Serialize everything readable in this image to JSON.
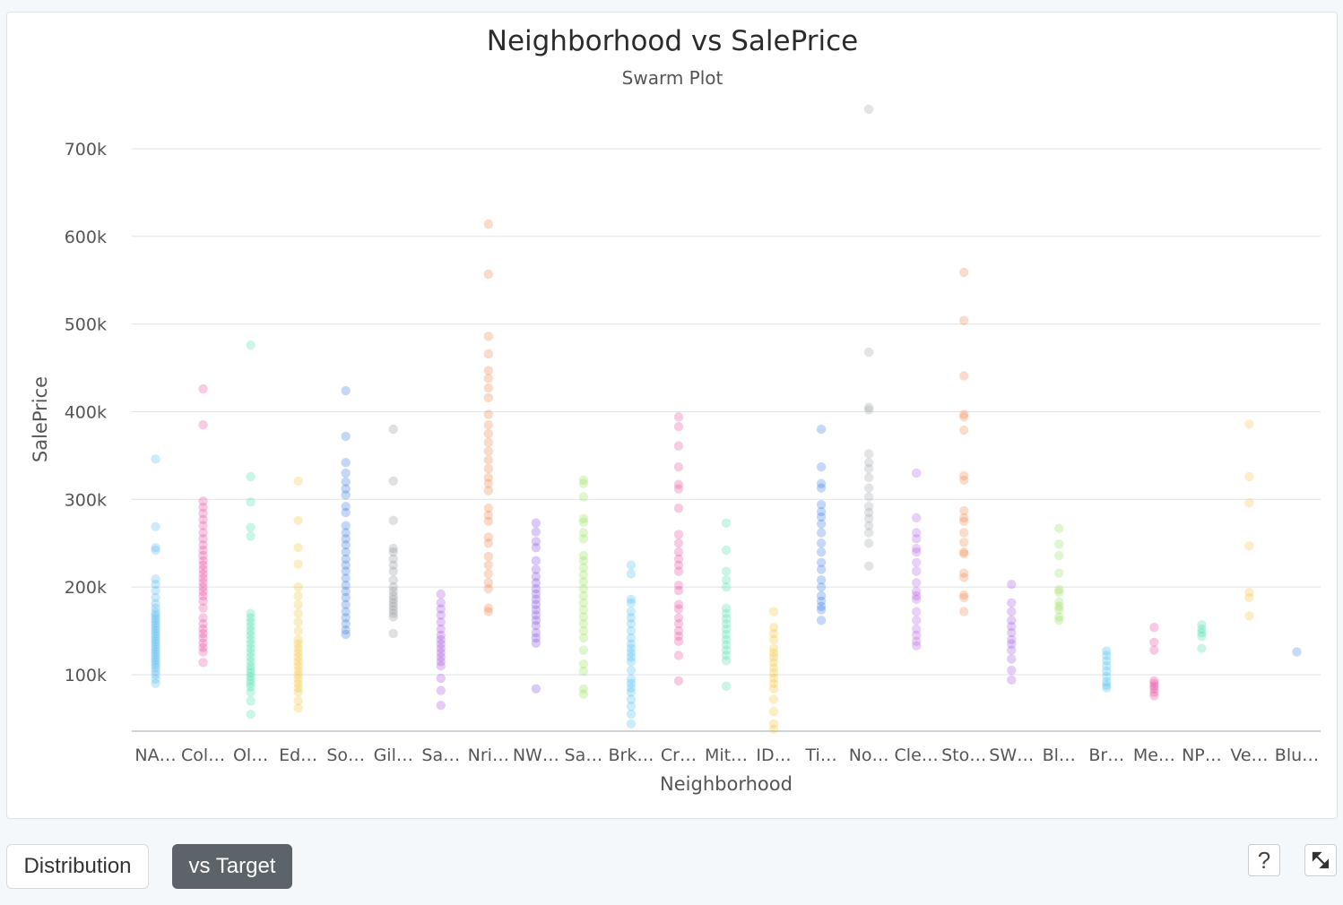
{
  "chart_data": {
    "type": "scatter",
    "title": "Neighborhood vs SalePrice",
    "subtitle": "Swarm Plot",
    "xlabel": "Neighborhood",
    "ylabel": "SalePrice",
    "ylim": [
      35000,
      735000
    ],
    "yticks": [
      {
        "value": 100000,
        "label": "100k"
      },
      {
        "value": 200000,
        "label": "200k"
      },
      {
        "value": 300000,
        "label": "300k"
      },
      {
        "value": 400000,
        "label": "400k"
      },
      {
        "value": 500000,
        "label": "500k"
      },
      {
        "value": 600000,
        "label": "600k"
      },
      {
        "value": 700000,
        "label": "700k"
      }
    ],
    "grid": true,
    "series": [
      {
        "category": "NA…",
        "color": "#4fb8f0",
        "values": [
          346000,
          269000,
          245000,
          242000,
          209000,
          203000,
          196000,
          188000,
          181000,
          176000,
          171000,
          168000,
          165000,
          162000,
          159000,
          156000,
          153000,
          150000,
          147000,
          144000,
          141000,
          138000,
          135000,
          132000,
          129000,
          126000,
          123000,
          120000,
          117000,
          114000,
          111000,
          108000,
          104000,
          100000,
          95000,
          90000
        ]
      },
      {
        "category": "Col…",
        "color": "#e6409a",
        "values": [
          426000,
          385000,
          298000,
          291000,
          284000,
          277000,
          270000,
          262000,
          255000,
          248000,
          242000,
          236000,
          230000,
          225000,
          220000,
          215000,
          210000,
          205000,
          200000,
          195000,
          190000,
          184000,
          176000,
          165000,
          158000,
          152000,
          147000,
          142000,
          136000,
          131000,
          126000,
          114000
        ]
      },
      {
        "category": "Ol…",
        "color": "#3ee0a8",
        "values": [
          476000,
          326000,
          297000,
          268000,
          258000,
          170000,
          165000,
          160000,
          155000,
          150000,
          145000,
          140000,
          135000,
          130000,
          125000,
          120000,
          115000,
          110000,
          106000,
          102000,
          98000,
          94000,
          90000,
          86000,
          80000,
          70000,
          55000
        ]
      },
      {
        "category": "Ed…",
        "color": "#f2c12e",
        "values": [
          321000,
          276000,
          245000,
          226000,
          200000,
          190000,
          180000,
          170000,
          160000,
          150000,
          140000,
          135000,
          130000,
          125000,
          120000,
          115000,
          110000,
          105000,
          100000,
          95000,
          90000,
          85000,
          80000,
          70000,
          62000
        ]
      },
      {
        "category": "So…",
        "color": "#2b6fe0",
        "values": [
          424000,
          372000,
          342000,
          330000,
          320000,
          312000,
          305000,
          292000,
          285000,
          270000,
          262000,
          255000,
          248000,
          240000,
          232000,
          225000,
          218000,
          210000,
          202000,
          195000,
          188000,
          180000,
          172000,
          165000,
          158000,
          151000,
          146000
        ]
      },
      {
        "category": "Gil…",
        "color": "#8c9095",
        "values": [
          380000,
          321000,
          276000,
          244000,
          240000,
          232000,
          225000,
          218000,
          208000,
          200000,
          195000,
          190000,
          186000,
          182000,
          178000,
          174000,
          170000,
          166000,
          147000
        ]
      },
      {
        "category": "Sa…",
        "color": "#a244e0",
        "values": [
          192000,
          182000,
          175000,
          168000,
          160000,
          152000,
          145000,
          140000,
          135000,
          130000,
          125000,
          120000,
          115000,
          110000,
          96000,
          82000,
          65000
        ]
      },
      {
        "category": "Nri…",
        "color": "#ee7a3a",
        "values": [
          614000,
          557000,
          486000,
          466000,
          447000,
          438000,
          427000,
          416000,
          397000,
          385000,
          375000,
          365000,
          355000,
          345000,
          335000,
          325000,
          318000,
          310000,
          290000,
          282000,
          275000,
          257000,
          250000,
          235000,
          225000,
          215000,
          205000,
          198000,
          176000,
          172000
        ]
      },
      {
        "category": "NW…",
        "color": "#7b3fe4",
        "values": [
          273000,
          263000,
          252000,
          245000,
          230000,
          220000,
          212000,
          205000,
          198000,
          192000,
          186000,
          180000,
          174000,
          168000,
          162000,
          156000,
          148000,
          142000,
          136000,
          84000
        ]
      },
      {
        "category": "Sa…",
        "color": "#8ee04c",
        "values": [
          322000,
          318000,
          303000,
          278000,
          274000,
          262000,
          255000,
          236000,
          230000,
          222000,
          214000,
          206000,
          198000,
          190000,
          182000,
          174000,
          166000,
          158000,
          150000,
          142000,
          128000,
          112000,
          104000,
          84000,
          78000
        ]
      },
      {
        "category": "Brk…",
        "color": "#3fbcf2",
        "values": [
          225000,
          215000,
          186000,
          182000,
          172000,
          165000,
          158000,
          150000,
          142000,
          135000,
          130000,
          125000,
          120000,
          115000,
          105000,
          95000,
          90000,
          85000,
          80000,
          72000,
          64000,
          55000,
          44000
        ]
      },
      {
        "category": "Cr…",
        "color": "#e6459c",
        "values": [
          394000,
          383000,
          361000,
          337000,
          317000,
          312000,
          290000,
          260000,
          250000,
          240000,
          232000,
          225000,
          218000,
          202000,
          196000,
          180000,
          175000,
          165000,
          158000,
          150000,
          144000,
          138000,
          122000,
          93000
        ]
      },
      {
        "category": "Mit…",
        "color": "#44e0a8",
        "values": [
          273000,
          242000,
          218000,
          208000,
          200000,
          176000,
          170000,
          164000,
          158000,
          152000,
          146000,
          140000,
          134000,
          128000,
          122000,
          116000,
          87000
        ]
      },
      {
        "category": "ID…",
        "color": "#f2c230",
        "values": [
          172000,
          154000,
          147000,
          140000,
          130000,
          125000,
          120000,
          114000,
          108000,
          102000,
          96000,
          90000,
          84000,
          72000,
          58000,
          44000,
          38000
        ]
      },
      {
        "category": "Ti…",
        "color": "#2f74e6",
        "values": [
          380000,
          337000,
          318000,
          313000,
          294000,
          286000,
          280000,
          272000,
          262000,
          250000,
          240000,
          228000,
          220000,
          208000,
          200000,
          190000,
          184000,
          178000,
          174000,
          162000
        ]
      },
      {
        "category": "No…",
        "color": "#9a9ea3",
        "values": [
          745000,
          468000,
          405000,
          402000,
          352000,
          342000,
          335000,
          325000,
          313000,
          303000,
          292000,
          285000,
          278000,
          270000,
          262000,
          250000,
          224000
        ]
      },
      {
        "category": "Cle…",
        "color": "#b055e6",
        "values": [
          330000,
          279000,
          262000,
          255000,
          244000,
          240000,
          228000,
          218000,
          205000,
          195000,
          190000,
          186000,
          172000,
          162000,
          152000,
          145000,
          138000,
          133000
        ]
      },
      {
        "category": "Sto…",
        "color": "#f0803f",
        "values": [
          559000,
          504000,
          441000,
          397000,
          394000,
          379000,
          327000,
          322000,
          287000,
          279000,
          275000,
          262000,
          251000,
          240000,
          238000,
          216000,
          211000,
          191000,
          188000,
          172000
        ]
      },
      {
        "category": "SW…",
        "color": "#9a50e0",
        "values": [
          203000,
          182000,
          172000,
          162000,
          155000,
          148000,
          140000,
          135000,
          128000,
          118000,
          105000,
          94000
        ]
      },
      {
        "category": "Bl…",
        "color": "#8ede55",
        "values": [
          267000,
          249000,
          236000,
          216000,
          197000,
          194000,
          183000,
          178000,
          174000,
          166000,
          162000
        ]
      },
      {
        "category": "Br…",
        "color": "#3dbbf2",
        "values": [
          127000,
          122000,
          116000,
          110000,
          104000,
          98000,
          92000,
          88000,
          85000
        ]
      },
      {
        "category": "Me…",
        "color": "#e64296",
        "values": [
          154000,
          137000,
          128000,
          93000,
          90000,
          87000,
          84000,
          80000,
          76000
        ]
      },
      {
        "category": "NP…",
        "color": "#3fdcab",
        "values": [
          157000,
          152000,
          148000,
          144000,
          130000
        ]
      },
      {
        "category": "Ve…",
        "color": "#f3c33d",
        "values": [
          386000,
          326000,
          296000,
          247000,
          194000,
          188000,
          167000
        ]
      },
      {
        "category": "Blu…",
        "color": "#3a79e6",
        "values": [
          126000
        ]
      }
    ]
  },
  "footer": {
    "distribution_label": "Distribution",
    "vs_target_label": "vs Target",
    "help_label": "?"
  }
}
